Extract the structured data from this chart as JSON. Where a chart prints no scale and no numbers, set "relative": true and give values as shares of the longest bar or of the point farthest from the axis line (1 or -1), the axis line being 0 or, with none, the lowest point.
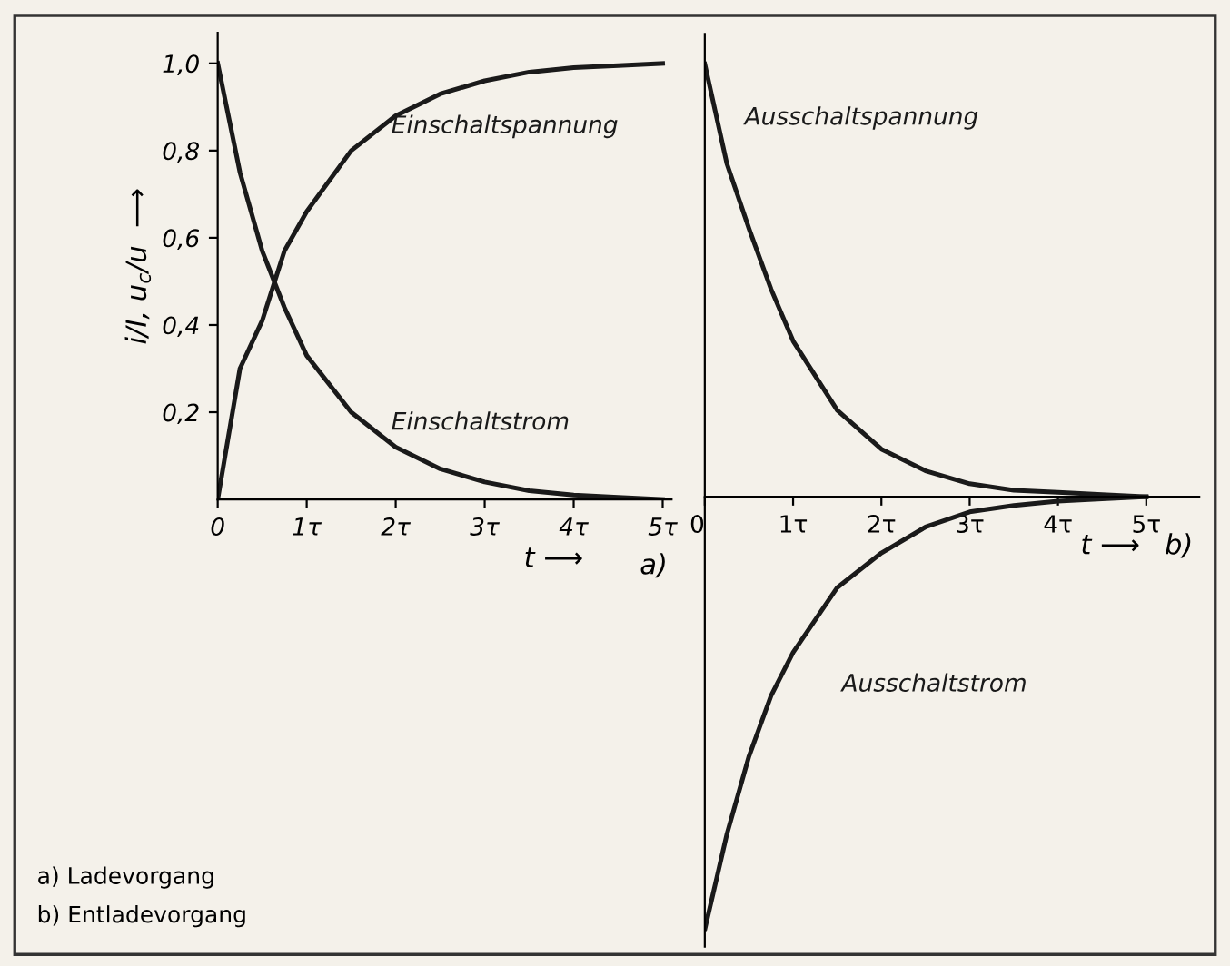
{
  "chart_data": [
    {
      "type": "line",
      "xlabel": "t ⟶",
      "ylabel": "i/I, u$_{c}$/u  ⟶",
      "x": [
        0,
        0.25,
        0.5,
        0.75,
        1,
        1.5,
        2,
        2.5,
        3,
        3.5,
        4,
        4.5,
        5
      ],
      "series": [
        {
          "name": "Einschaltspannung",
          "color": "#1a1a1a",
          "values": [
            0,
            0.3,
            0.41,
            0.57,
            0.66,
            0.8,
            0.88,
            0.93,
            0.96,
            0.98,
            0.99,
            0.995,
            1.0
          ]
        },
        {
          "name": "Einschaltstrom",
          "color": "#1a1a1a",
          "values": [
            1.0,
            0.75,
            0.57,
            0.44,
            0.33,
            0.2,
            0.12,
            0.07,
            0.04,
            0.02,
            0.01,
            0.005,
            0
          ]
        }
      ],
      "xlim": [
        0,
        5.1
      ],
      "ylim": [
        0,
        1.07
      ],
      "xticks": [
        0,
        {
          "value": 1,
          "label": "1τ"
        },
        {
          "value": 2,
          "label": "2τ"
        },
        {
          "value": 3,
          "label": "3τ"
        },
        {
          "value": 4,
          "label": "4τ"
        },
        {
          "value": 5,
          "label": "5τ"
        }
      ],
      "yticks": [
        {
          "value": 0.2,
          "label": "0,2"
        },
        {
          "value": 0.4,
          "label": "0,4"
        },
        {
          "value": 0.6,
          "label": "0,6"
        },
        {
          "value": 0.8,
          "label": "0,8"
        },
        {
          "value": 1.0,
          "label": "1,0"
        }
      ],
      "grid": false,
      "legend": false,
      "marker": "none",
      "line_style": "solid",
      "annotations": [
        "a)",
        "a) Ladevorgang",
        "b) Entladevorgang"
      ]
    },
    {
      "type": "line",
      "xlabel": "t ⟶",
      "relative": true,
      "x": [
        0,
        0.25,
        0.5,
        0.75,
        1,
        1.5,
        2,
        2.5,
        3,
        3.5,
        4,
        4.5,
        5
      ],
      "series": [
        {
          "name": "Ausschaltspannung",
          "color": "#1a1a1a",
          "values": [
            1.0,
            0.77,
            0.62,
            0.48,
            0.36,
            0.2,
            0.11,
            0.06,
            0.03,
            0.015,
            0.01,
            0.005,
            0
          ]
        },
        {
          "name": "Ausschaltstrom",
          "color": "#1a1a1a",
          "values": [
            -1.0,
            -0.78,
            -0.6,
            -0.46,
            -0.36,
            -0.21,
            -0.13,
            -0.07,
            -0.035,
            -0.02,
            -0.01,
            -0.005,
            0
          ]
        }
      ],
      "xlim": [
        0,
        5.6
      ],
      "xticks": [
        0,
        {
          "value": 1,
          "label": "1τ"
        },
        {
          "value": 2,
          "label": "2τ"
        },
        {
          "value": 3,
          "label": "3τ"
        },
        {
          "value": 4,
          "label": "4τ"
        },
        {
          "value": 5,
          "label": "5τ"
        }
      ],
      "grid": false,
      "legend": false,
      "marker": "none",
      "line_style": "solid",
      "annotations": [
        "b)"
      ]
    }
  ]
}
